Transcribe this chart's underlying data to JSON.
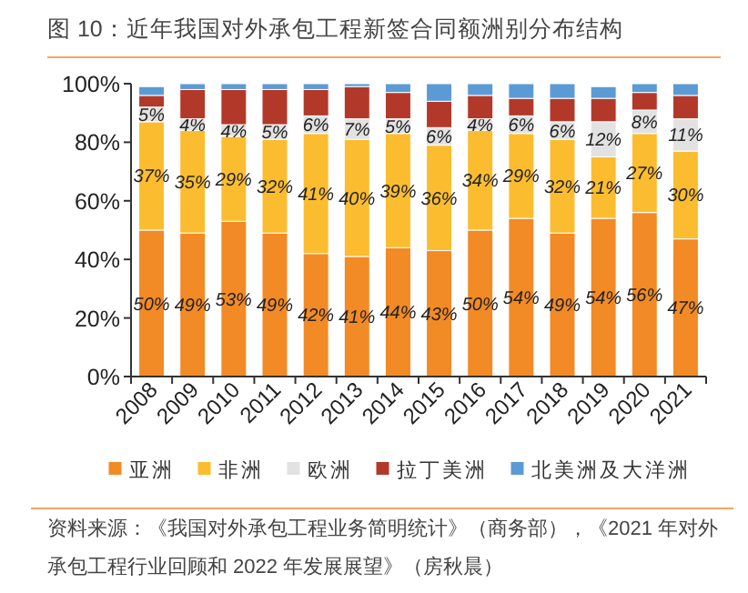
{
  "chart_data": {
    "type": "bar",
    "stacked": true,
    "title": "图 10：近年我国对外承包工程新签合同额洲别分布结构",
    "categories": [
      "2008",
      "2009",
      "2010",
      "2011",
      "2012",
      "2013",
      "2014",
      "2015",
      "2016",
      "2017",
      "2018",
      "2019",
      "2020",
      "2021"
    ],
    "series": [
      {
        "name": "亚洲",
        "color": "#f28a25",
        "values": [
          50,
          49,
          53,
          49,
          42,
          41,
          44,
          43,
          50,
          54,
          49,
          54,
          56,
          47
        ],
        "value_labels": [
          "50%",
          "49%",
          "53%",
          "49%",
          "42%",
          "41%",
          "44%",
          "43%",
          "50%",
          "54%",
          "49%",
          "54%",
          "56%",
          "47%"
        ]
      },
      {
        "name": "非洲",
        "color": "#fbbd2f",
        "values": [
          37,
          35,
          29,
          32,
          41,
          40,
          39,
          36,
          34,
          29,
          32,
          21,
          27,
          30
        ],
        "value_labels": [
          "37%",
          "35%",
          "29%",
          "32%",
          "41%",
          "40%",
          "39%",
          "36%",
          "34%",
          "29%",
          "32%",
          "21%",
          "27%",
          "30%"
        ]
      },
      {
        "name": "欧洲",
        "color": "#e2e2e2",
        "values": [
          5,
          4,
          4,
          5,
          6,
          7,
          5,
          6,
          4,
          6,
          6,
          12,
          8,
          11
        ],
        "value_labels": [
          "5%",
          "4%",
          "4%",
          "5%",
          "6%",
          "7%",
          "5%",
          "6%",
          "4%",
          "6%",
          "6%",
          "12%",
          "8%",
          "11%"
        ]
      },
      {
        "name": "拉丁美洲",
        "color": "#b2392a",
        "values": [
          4,
          10,
          12,
          12,
          9,
          11,
          9,
          9,
          8,
          6,
          8,
          8,
          6,
          8
        ]
      },
      {
        "name": "北美洲及大洋洲",
        "color": "#5b9bd5",
        "values": [
          3,
          2,
          2,
          2,
          2,
          1,
          3,
          6,
          4,
          5,
          5,
          4,
          3,
          4
        ]
      }
    ],
    "ylim": [
      0,
      100
    ],
    "yticks": [
      {
        "value": 0,
        "label": "0%"
      },
      {
        "value": 20,
        "label": "20%"
      },
      {
        "value": 40,
        "label": "40%"
      },
      {
        "value": 60,
        "label": "60%"
      },
      {
        "value": 80,
        "label": "80%"
      },
      {
        "value": 100,
        "label": "100%"
      }
    ],
    "legend": "bottom",
    "annotations": [
      "资料来源：《我国对外承包工程业务简明统计》（商务部），《2021 年对外承包工程行业回顾和 2022 年发展展望》（房秋晨）"
    ]
  }
}
